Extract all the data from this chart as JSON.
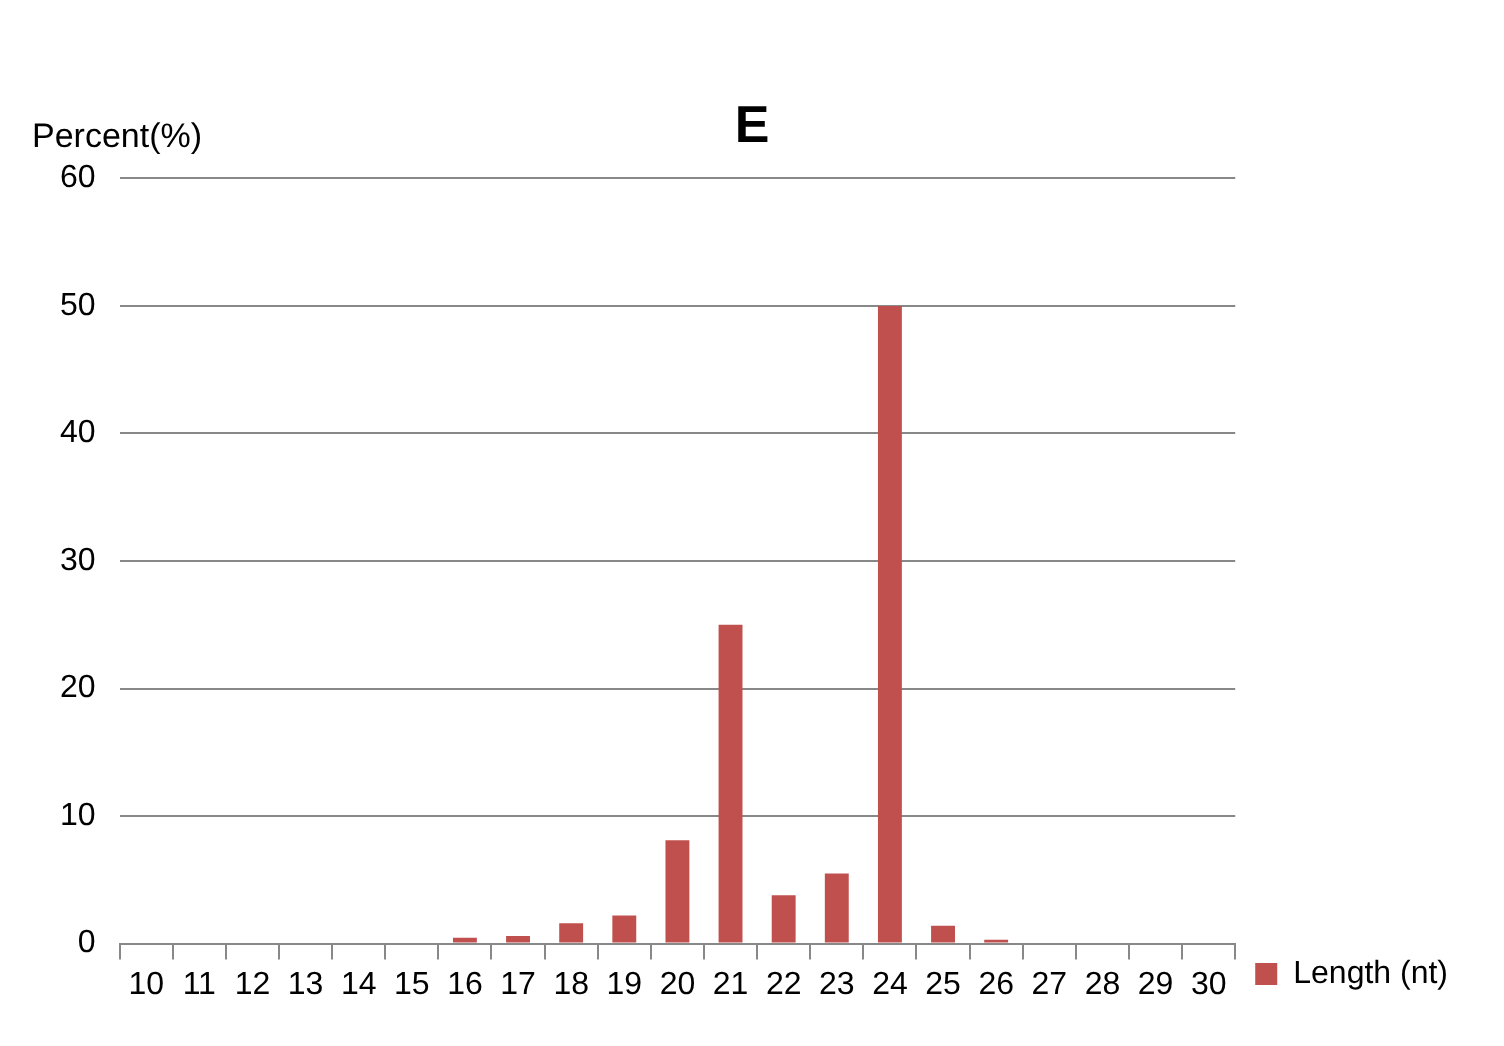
{
  "chart_data": {
    "type": "bar",
    "title": "E",
    "ylabel": "Percent(%)",
    "categories": [
      "10",
      "11",
      "12",
      "13",
      "14",
      "15",
      "16",
      "17",
      "18",
      "19",
      "20",
      "21",
      "22",
      "23",
      "24",
      "25",
      "26",
      "27",
      "28",
      "29",
      "30"
    ],
    "series": [
      {
        "name": "Length (nt)",
        "color": "#c0504d",
        "values": [
          0,
          0,
          0,
          0,
          0,
          0,
          0.45,
          0.6,
          1.6,
          2.2,
          8.1,
          25,
          3.8,
          5.5,
          50,
          1.4,
          0.3,
          0,
          0,
          0,
          0
        ]
      }
    ],
    "ylim": [
      0,
      60
    ],
    "yticks": [
      0,
      10,
      20,
      30,
      40,
      50,
      60
    ],
    "grid": "y",
    "legend": "right"
  }
}
